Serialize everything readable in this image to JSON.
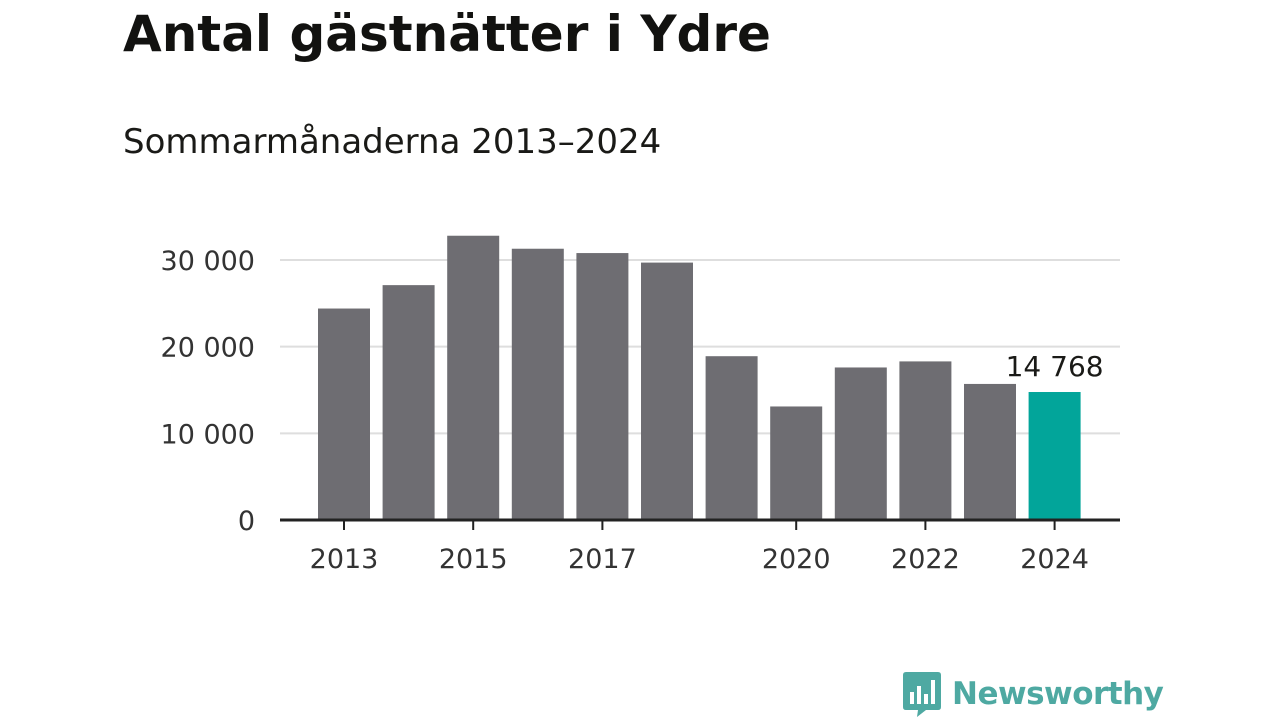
{
  "chart_data": {
    "type": "bar",
    "title": "Antal gästnätter i Ydre",
    "subtitle": "Sommarmånaderna 2013–2024",
    "categories": [
      "2013",
      "2014",
      "2015",
      "2016",
      "2017",
      "2018",
      "2019",
      "2020",
      "2021",
      "2022",
      "2023",
      "2024"
    ],
    "values": [
      24400,
      27100,
      32800,
      31300,
      30800,
      29700,
      18900,
      13100,
      17600,
      18300,
      15700,
      14768
    ],
    "x_tick_labels": [
      "2013",
      "2015",
      "2017",
      "2020",
      "2022",
      "2024"
    ],
    "y_ticks": [
      0,
      10000,
      20000,
      30000
    ],
    "y_tick_labels": [
      "0",
      "10 000",
      "20 000",
      "30 000"
    ],
    "ylim": [
      0,
      35000
    ],
    "grid": true,
    "highlight": {
      "category": "2024",
      "value_label": "14 768"
    },
    "xlabel": "",
    "ylabel": "",
    "colors": {
      "bar": "#6e6d72",
      "highlight": "#02a59a",
      "grid": "#dedede",
      "axis": "#222222"
    }
  },
  "brand": {
    "name": "Newsworthy",
    "logo_icon": "bar-chart-speech-bubble-icon",
    "color": "#4ea9a2"
  }
}
